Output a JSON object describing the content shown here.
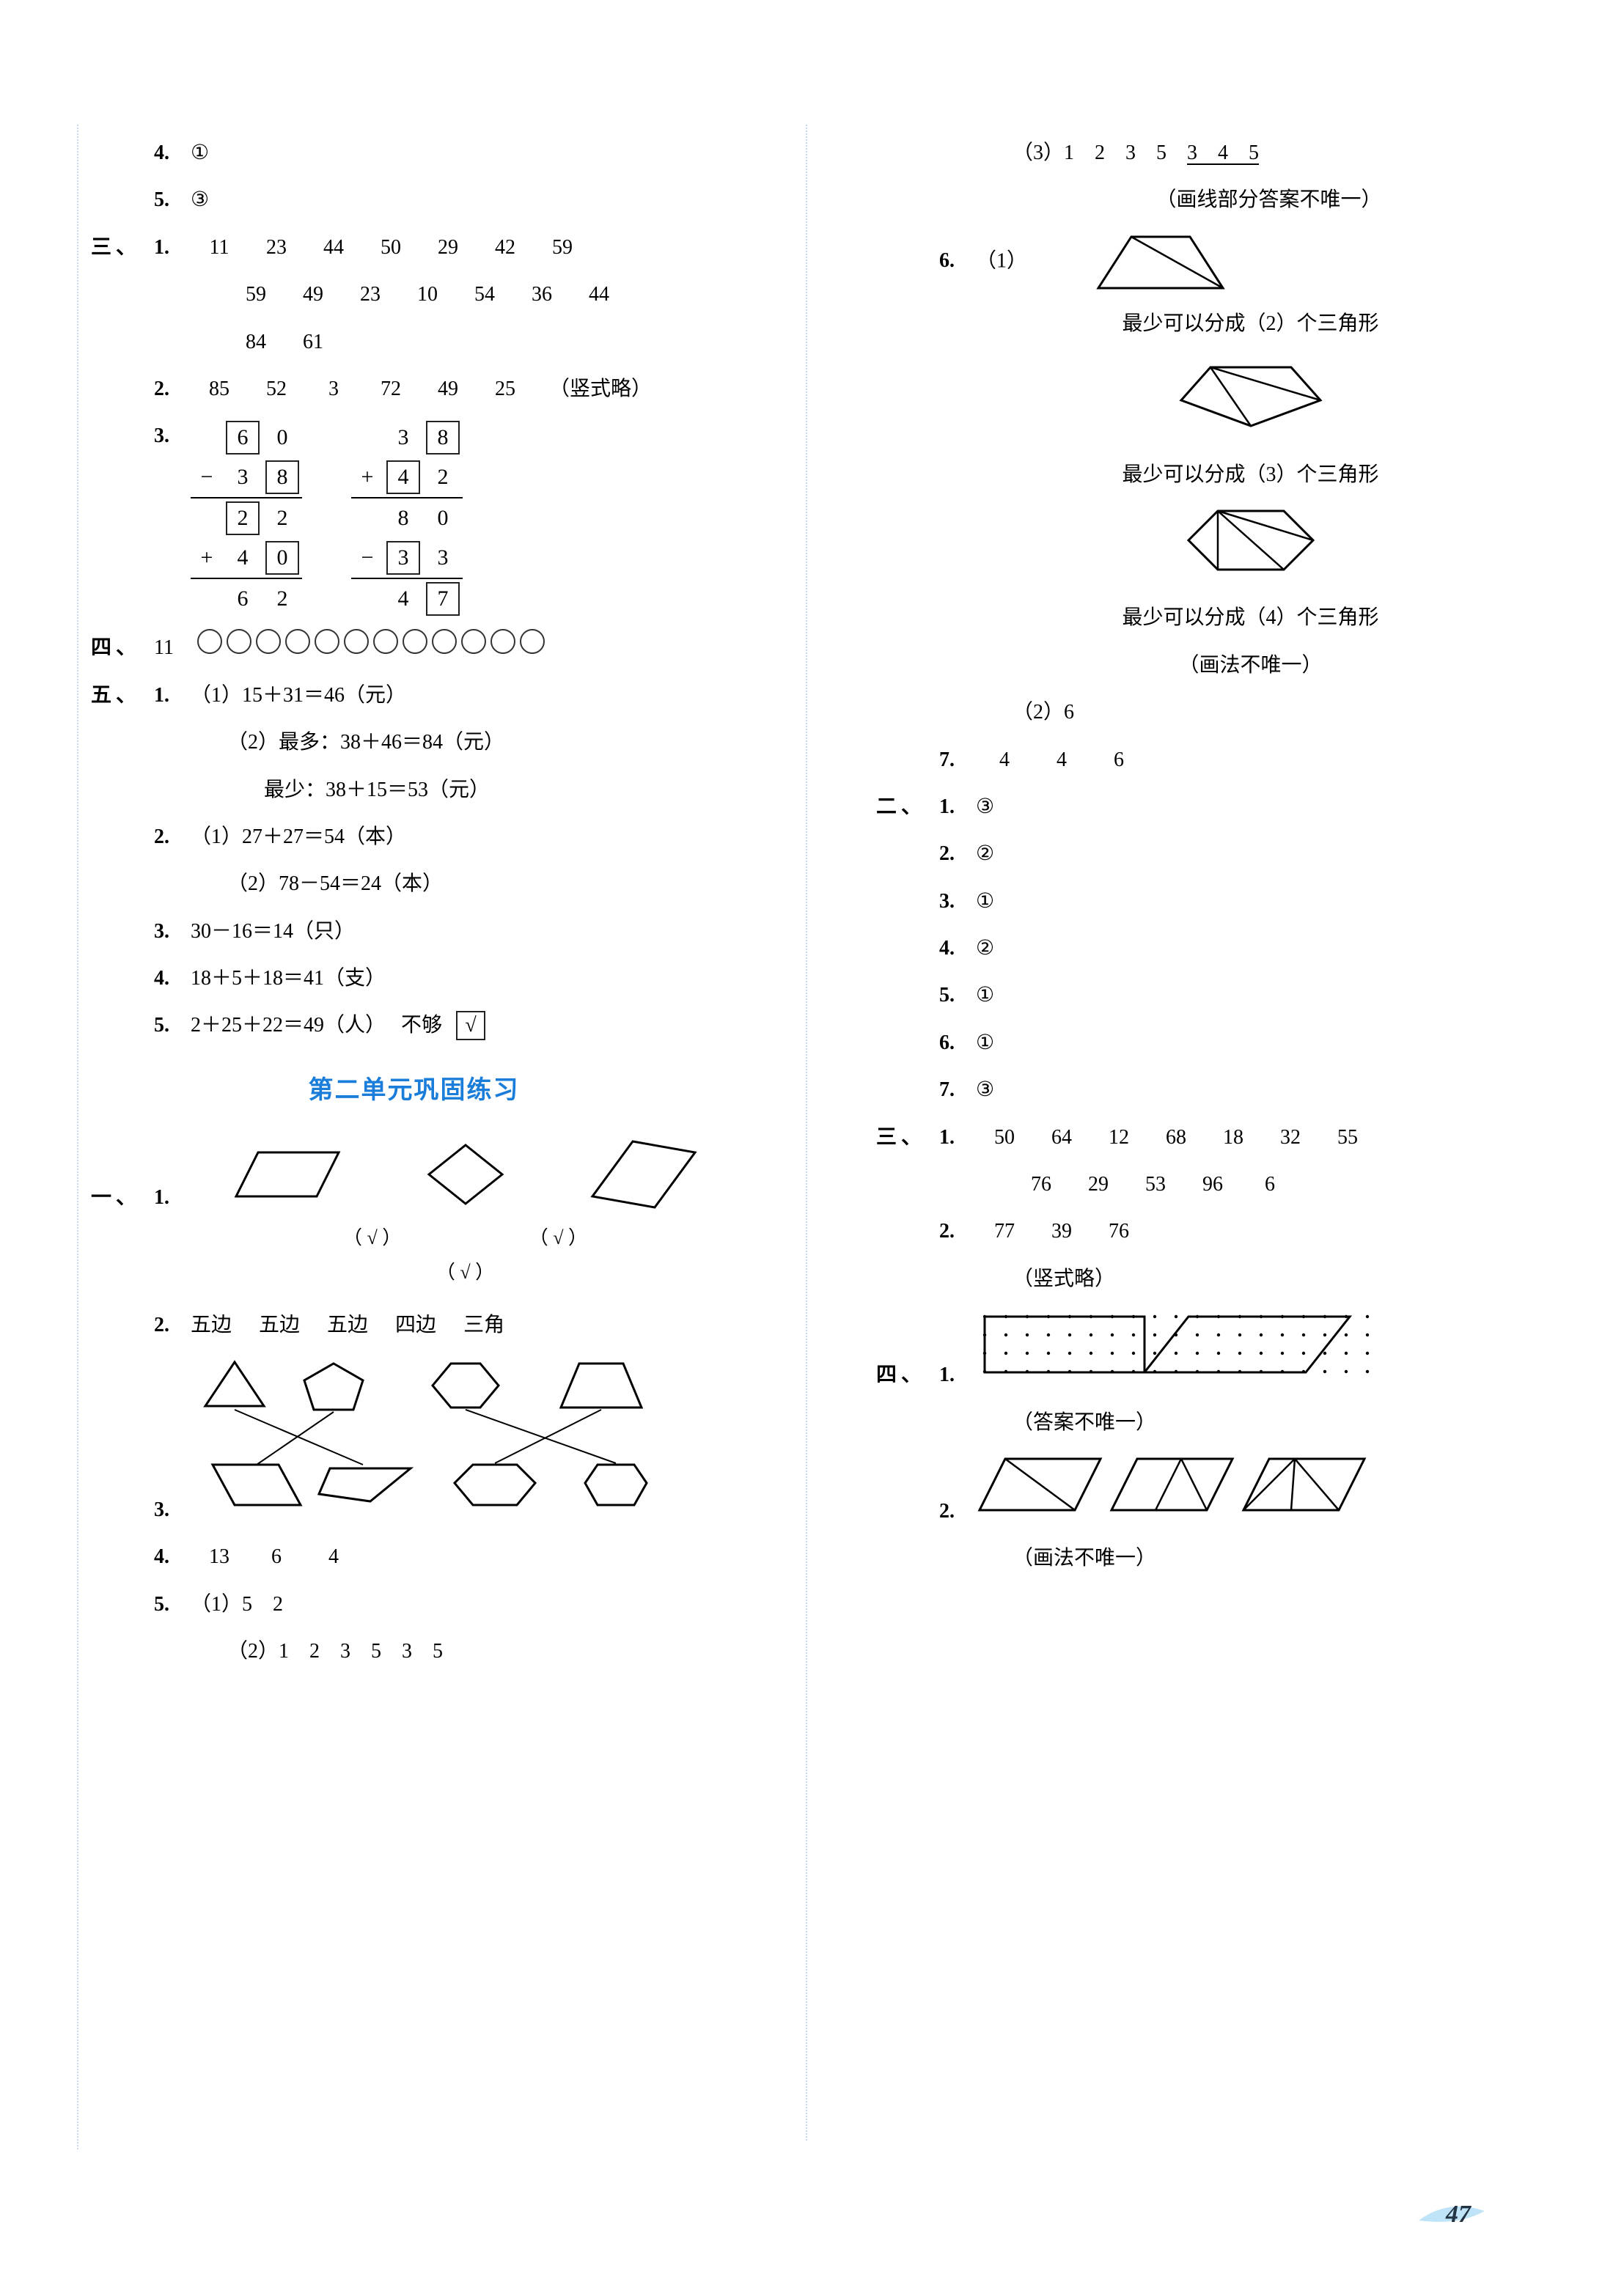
{
  "left": {
    "item4": "①",
    "item5": "③",
    "san": {
      "label": "三、",
      "q1": {
        "row1": [
          "11",
          "23",
          "44",
          "50",
          "29",
          "42",
          "59"
        ],
        "row2": [
          "59",
          "49",
          "23",
          "10",
          "54",
          "36",
          "44"
        ],
        "row3": [
          "84",
          "61"
        ]
      },
      "q2": {
        "nums": [
          "85",
          "52",
          "3",
          "72",
          "49",
          "25"
        ],
        "note": "（竖式略）"
      },
      "q3": {
        "calc1": [
          [
            "",
            "6b",
            "0"
          ],
          [
            "−",
            "3",
            "8b"
          ],
          [
            "=",
            "2b",
            "2"
          ],
          [
            "+",
            "4",
            "0b"
          ],
          [
            "=",
            "6",
            "2"
          ]
        ],
        "calc2": [
          [
            "",
            "3",
            "8b"
          ],
          [
            "+",
            "4b",
            "2"
          ],
          [
            "=",
            "8",
            "0"
          ],
          [
            "−",
            "3b",
            "3"
          ],
          [
            "=",
            "4",
            "7b"
          ]
        ]
      }
    },
    "si": {
      "label": "四、",
      "value": "11",
      "circles": 12
    },
    "wu": {
      "label": "五、",
      "q1": {
        "a": "（1）15＋31＝46（元）",
        "b": "（2）最多：38＋46＝84（元）",
        "c": "最少：38＋15＝53（元）"
      },
      "q2": {
        "a": "（1）27＋27＝54（本）",
        "b": "（2）78－54＝24（本）"
      },
      "q3": "30－16＝14（只）",
      "q4": "18＋5＋18＝41（支）",
      "q5": {
        "eq": "2＋25＋22＝49（人）",
        "label": "不够",
        "check": "√"
      }
    },
    "title": "第二单元巩固练习",
    "yi": {
      "label": "一、",
      "q1_marks": [
        "（ √ ）",
        "（ √ ）",
        "（ √ ）"
      ],
      "q2": [
        "五边",
        "五边",
        "五边",
        "四边",
        "三角"
      ],
      "q4": [
        "13",
        "6",
        "4"
      ],
      "q5": {
        "a": "（1）5　2",
        "b": "（2）1　2　3　5　3　5"
      }
    }
  },
  "right": {
    "q5c": {
      "prefix": "（3）1　2　3　5　",
      "underline": "3　4　5"
    },
    "q5note": "（画线部分答案不唯一）",
    "q6": {
      "label": "（1）",
      "t1": "最少可以分成（2）个三角形",
      "t2": "最少可以分成（3）个三角形",
      "t3": "最少可以分成（4）个三角形",
      "note": "（画法不唯一）",
      "part2": "（2）6"
    },
    "q7": [
      "4",
      "4",
      "6"
    ],
    "er": {
      "label": "二、",
      "items": [
        "③",
        "②",
        "①",
        "②",
        "①",
        "①",
        "③"
      ]
    },
    "san": {
      "label": "三、",
      "q1": {
        "row1": [
          "50",
          "64",
          "12",
          "68",
          "18",
          "32",
          "55"
        ],
        "row2": [
          "76",
          "29",
          "53",
          "96",
          "6"
        ]
      },
      "q2": {
        "nums": [
          "77",
          "39",
          "76"
        ],
        "note": "（竖式略）"
      }
    },
    "si": {
      "label": "四、",
      "q1note": "（答案不唯一）",
      "q2note": "（画法不唯一）"
    }
  },
  "page": "47"
}
